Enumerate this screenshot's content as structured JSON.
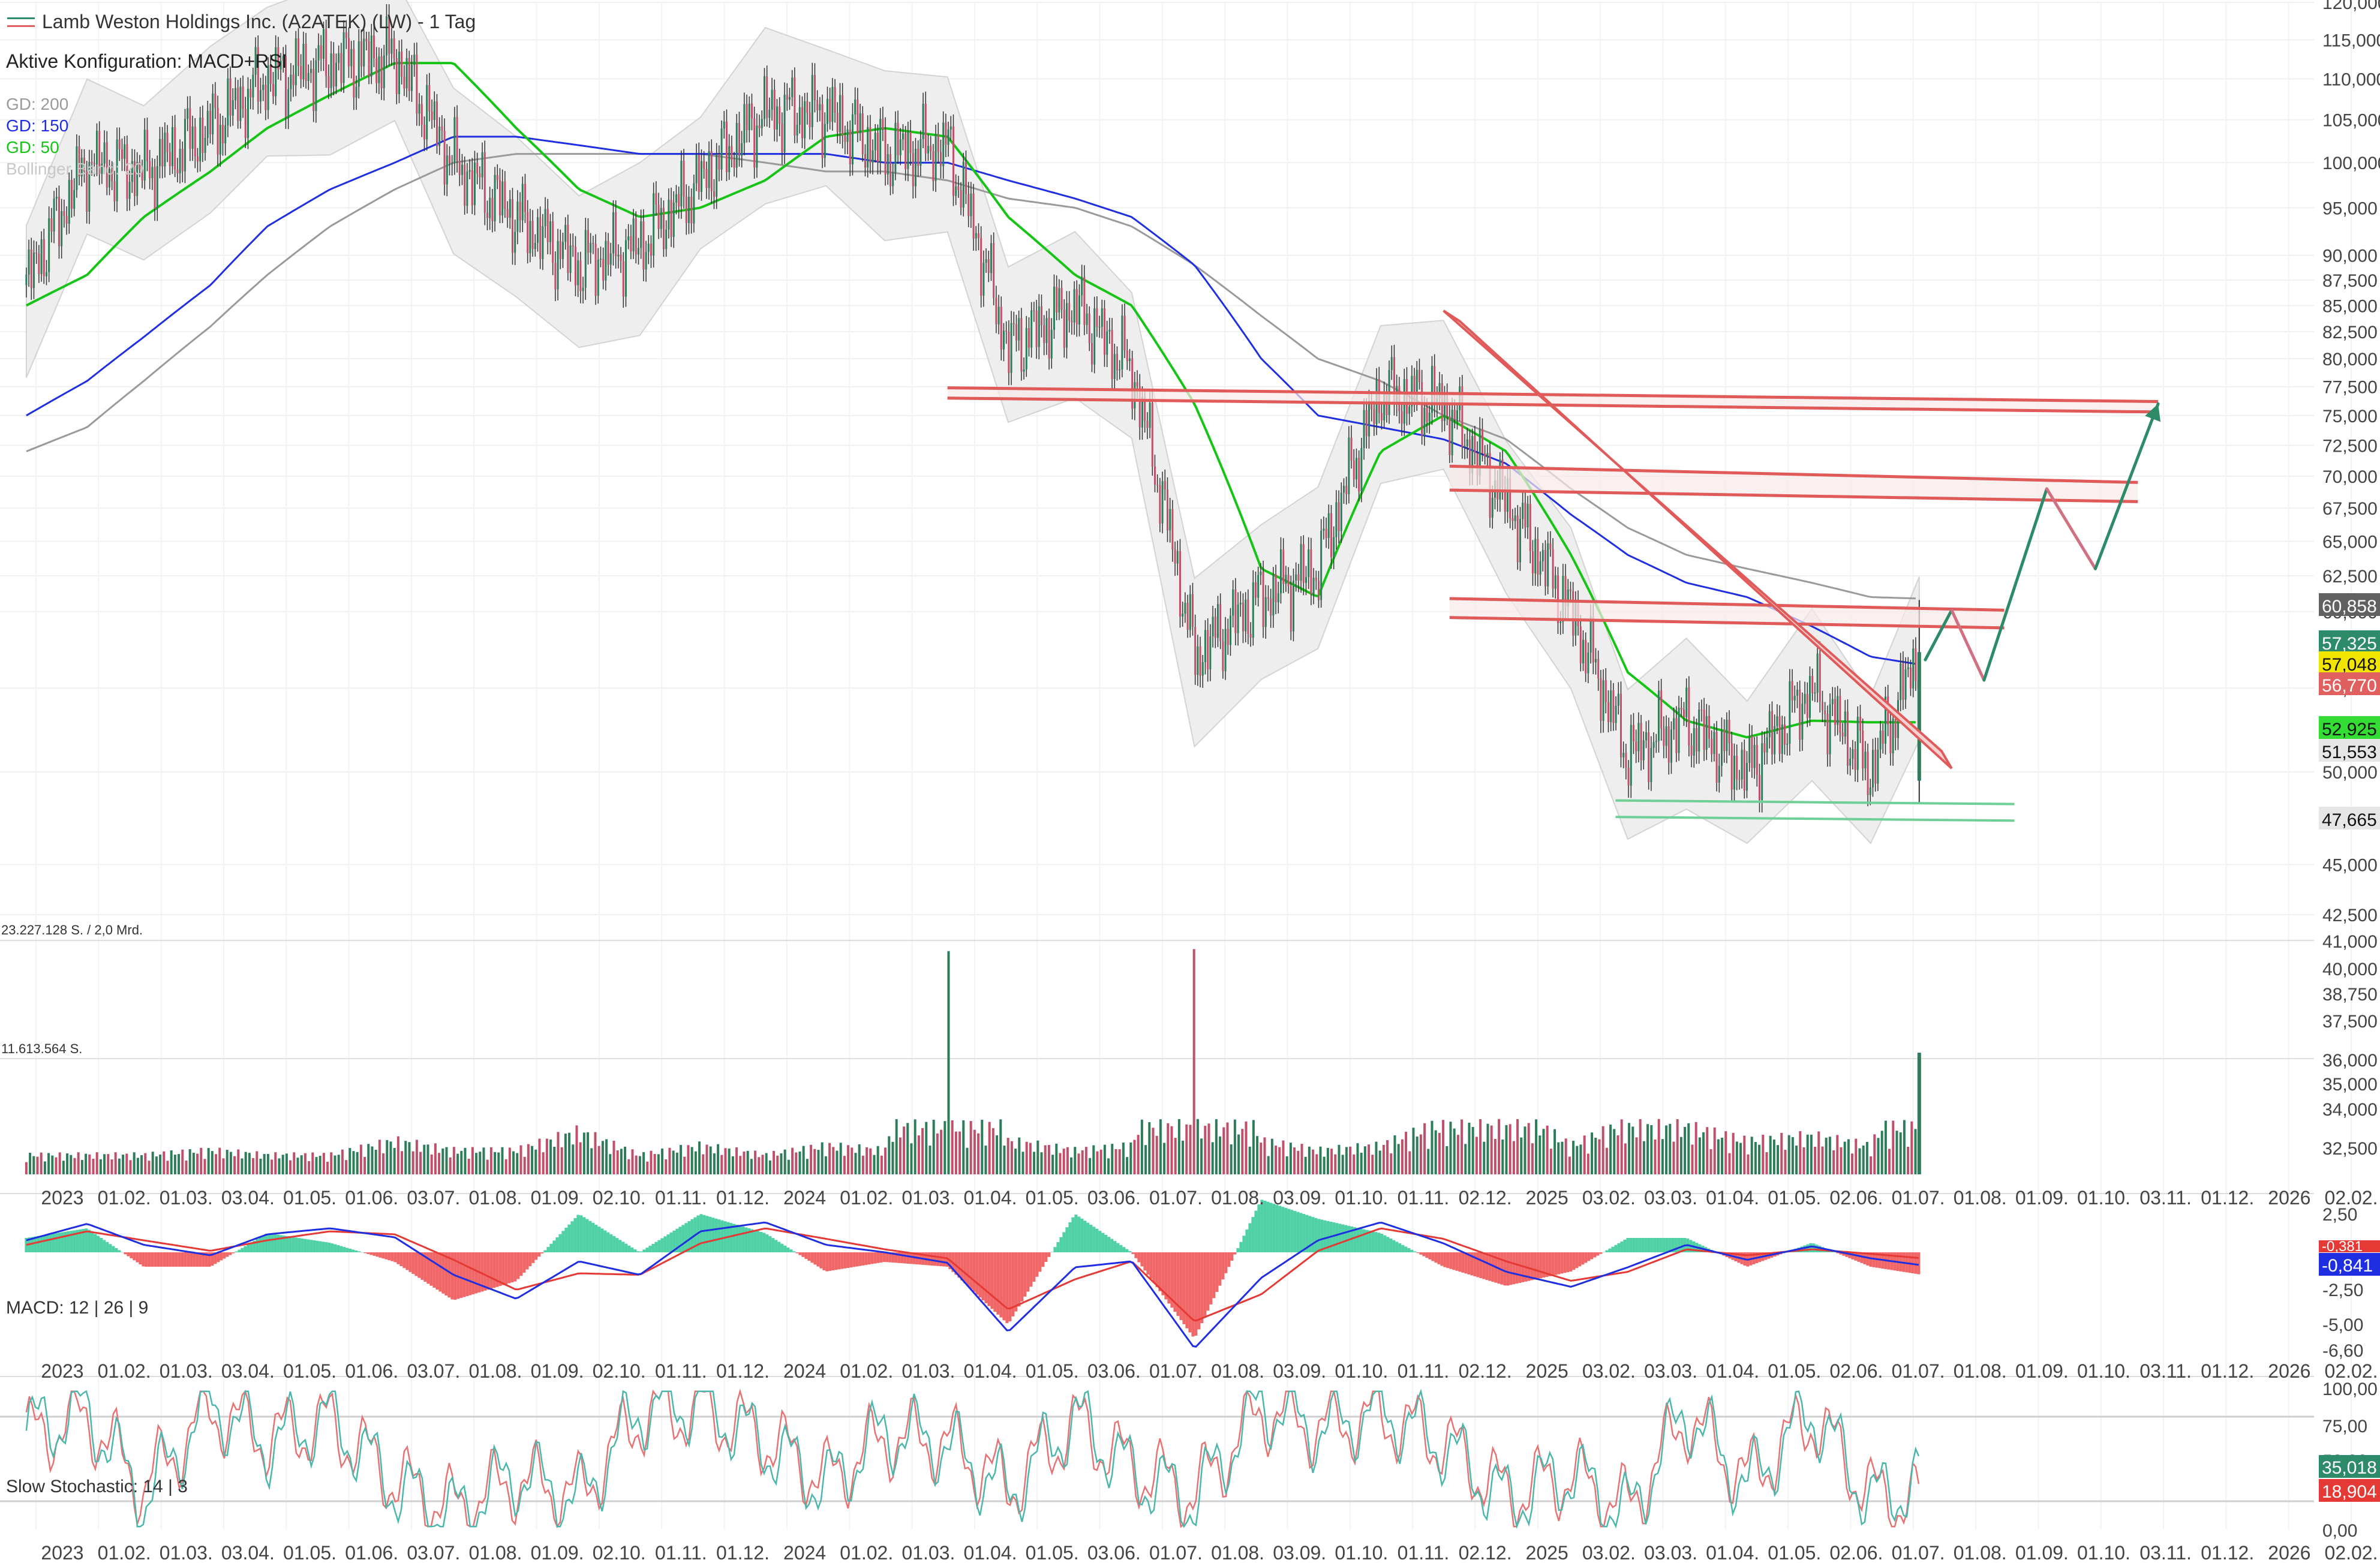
{
  "header": {
    "title": "Lamb Weston Holdings Inc. (A2ATEK) (LW) - 1 Tag",
    "config": "Aktive Konfiguration: MACD+RSI",
    "legend": [
      {
        "label": "GD: 200",
        "color": "#9a9a9a"
      },
      {
        "label": "GD: 150",
        "color": "#1f2ee0"
      },
      {
        "label": "GD: 50",
        "color": "#16c416"
      },
      {
        "label": "Bollinger Band: 20",
        "color": "#c8c8c8"
      }
    ]
  },
  "colors": {
    "up": "#2e7d5a",
    "down": "#c0506a",
    "resistance": "#e05a5a",
    "support": "#6fcf97",
    "arrow": "#2e8b6a",
    "macd": "#1f2ee0",
    "signal": "#e53935",
    "hist_pos": "#4fd1a5",
    "hist_neg": "#f06767",
    "gd50": "#16c416",
    "gd150": "#1f2ee0",
    "gd200": "#9a9a9a"
  },
  "x_axis": {
    "labels": [
      "2023",
      "01.02.",
      "01.03.",
      "03.04.",
      "01.05.",
      "01.06.",
      "03.07.",
      "01.08.",
      "01.09.",
      "02.10.",
      "01.11.",
      "01.12.",
      "2024",
      "01.02.",
      "01.03.",
      "01.04.",
      "01.05.",
      "03.06.",
      "01.07.",
      "01.08.",
      "03.09.",
      "01.10.",
      "01.11.",
      "02.12.",
      "2025",
      "03.02.",
      "03.03.",
      "01.04.",
      "01.05.",
      "02.06.",
      "01.07.",
      "01.08.",
      "01.09.",
      "01.10.",
      "03.11.",
      "01.12.",
      "2026",
      "02.02."
    ]
  },
  "price_axis": {
    "ticks": [
      "120,000",
      "115,000",
      "110,000",
      "105,000",
      "100,000",
      "95,000",
      "90,000",
      "87,500",
      "85,000",
      "82,500",
      "80,000",
      "77,500",
      "75,000",
      "72,500",
      "70,000",
      "67,500",
      "65,000",
      "62,500",
      "60,000",
      "55,000",
      "50,000",
      "45,000",
      "42,500"
    ],
    "badges": [
      {
        "value": "60,858",
        "bg": "#616161",
        "fg": "#ffffff"
      },
      {
        "value": "57,325",
        "bg": "#2e8b6a",
        "fg": "#ffffff"
      },
      {
        "value": "57,048",
        "bg": "#f2e600",
        "fg": "#111111"
      },
      {
        "value": "56,770",
        "bg": "#e06060",
        "fg": "#ffffff"
      },
      {
        "value": "52,925",
        "bg": "#33dd33",
        "fg": "#111111"
      },
      {
        "value": "51,553",
        "bg": "#e6e6e6",
        "fg": "#111111"
      },
      {
        "value": "47,665",
        "bg": "#e6e6e6",
        "fg": "#111111"
      }
    ]
  },
  "volume": {
    "label_top": "23.227.128 S. / 2,0 Mrd.",
    "label_mid": "11.613.564 S.",
    "ticks": [
      "41,000",
      "40,000",
      "38,750",
      "37,500",
      "36,000",
      "35,000",
      "34,000",
      "32,500"
    ]
  },
  "macd": {
    "label": "MACD: 12 | 26 | 9",
    "ticks": [
      "2,50",
      "-2,50",
      "-5,00",
      "-6,60"
    ],
    "badges": [
      {
        "value": "-0,841",
        "bg": "#1f2ee0",
        "fg": "#ffffff"
      },
      {
        "value": "-0,381",
        "bg": "#e53935",
        "fg": "#ffffff"
      }
    ]
  },
  "stoch": {
    "label": "Slow Stochastic: 14 | 3",
    "ticks": [
      "100,00",
      "75,00",
      "50,00",
      "0,00"
    ],
    "badges": [
      {
        "value": "35,018",
        "bg": "#2e8b6a",
        "fg": "#ffffff"
      },
      {
        "value": "18,904",
        "bg": "#e53935",
        "fg": "#ffffff"
      }
    ]
  },
  "chart_data": {
    "type": "line",
    "title": "Lamb Weston Holdings Inc. (A2ATEK) (LW) - 1 Tag",
    "ylim": [
      41.5,
      120
    ],
    "y_scale": "log",
    "x": [
      "2023-01-02",
      "2023-02-01",
      "2023-03-01",
      "2023-04-03",
      "2023-05-01",
      "2023-06-01",
      "2023-07-03",
      "2023-08-01",
      "2023-09-01",
      "2023-10-02",
      "2023-11-01",
      "2023-12-01",
      "2024-01-02",
      "2024-02-01",
      "2024-03-01",
      "2024-04-01",
      "2024-05-01",
      "2024-06-03",
      "2024-07-01",
      "2024-08-01",
      "2024-09-03",
      "2024-10-01",
      "2024-11-01",
      "2024-12-02",
      "2025-01-02",
      "2025-02-03",
      "2025-03-03",
      "2025-04-01",
      "2025-05-01",
      "2025-06-02",
      "2025-07-01",
      "2025-07-25"
    ],
    "series": [
      {
        "name": "Kurs",
        "values": [
          87,
          100,
          99,
          104,
          110,
          112,
          113,
          100,
          94,
          89,
          91,
          98,
          106,
          106,
          101,
          102,
          81,
          85,
          79,
          57,
          61,
          63,
          77,
          76,
          68,
          60,
          51,
          53,
          50,
          55,
          50,
          57.3
        ]
      },
      {
        "name": "GD: 50",
        "values": [
          85,
          88,
          94,
          99,
          104,
          108,
          112,
          112,
          104,
          97,
          94,
          95,
          98,
          103,
          104,
          103,
          94,
          88,
          85,
          76,
          63,
          61,
          72,
          75,
          72,
          64,
          56,
          53,
          52,
          53,
          52.9,
          52.9
        ]
      },
      {
        "name": "GD: 150",
        "values": [
          75,
          78,
          82,
          87,
          93,
          97,
          100,
          103,
          103,
          102,
          101,
          101,
          101,
          101,
          100,
          100,
          98,
          96,
          94,
          89,
          80,
          75,
          74,
          73,
          71,
          67,
          64,
          62,
          61,
          59,
          57,
          56.5
        ]
      },
      {
        "name": "GD: 200",
        "values": [
          72,
          74,
          78,
          83,
          88,
          93,
          97,
          100,
          101,
          101,
          101,
          101,
          100,
          99,
          99,
          98,
          96,
          95,
          93,
          89,
          84,
          80,
          78,
          75,
          73,
          69,
          66,
          64,
          63,
          62,
          61,
          60.9
        ]
      }
    ],
    "volume": [
      3,
      3,
      3,
      4,
      3,
      3,
      6,
      4,
      4,
      8,
      3,
      5,
      3,
      5,
      4,
      41,
      6,
      4,
      5,
      41,
      6,
      4,
      5,
      10,
      14,
      5,
      10,
      9,
      6,
      7,
      5,
      22
    ],
    "macd": [
      0.8,
      1.9,
      0.5,
      -0.2,
      1.2,
      1.6,
      1.0,
      -1.5,
      -3.1,
      -0.6,
      -1.5,
      1.4,
      2.0,
      0.5,
      0.0,
      -0.7,
      -5.3,
      -1.0,
      -0.6,
      -6.4,
      -1.7,
      0.8,
      2.0,
      0.6,
      -1.3,
      -2.3,
      -1.0,
      0.5,
      -0.5,
      0.4,
      -0.4,
      -0.84
    ],
    "signal": [
      0.5,
      1.4,
      0.8,
      0.1,
      0.8,
      1.4,
      1.2,
      -0.5,
      -2.5,
      -1.4,
      -1.5,
      0.6,
      1.6,
      0.9,
      0.2,
      -0.4,
      -3.8,
      -1.8,
      -0.6,
      -4.6,
      -2.8,
      0.1,
      1.6,
      0.9,
      -0.6,
      -1.9,
      -1.3,
      0.2,
      -0.2,
      0.2,
      -0.1,
      -0.381
    ],
    "stoch_k": [
      70,
      85,
      20,
      90,
      60,
      80,
      30,
      10,
      40,
      20,
      85,
      90,
      60,
      30,
      70,
      60,
      25,
      80,
      40,
      20,
      90,
      70,
      85,
      60,
      20,
      40,
      10,
      85,
      30,
      85,
      20,
      35.0
    ],
    "stoch_d": [
      65,
      80,
      30,
      85,
      65,
      75,
      35,
      15,
      35,
      25,
      80,
      85,
      65,
      35,
      65,
      62,
      30,
      75,
      45,
      25,
      85,
      72,
      80,
      62,
      25,
      38,
      15,
      80,
      35,
      80,
      25,
      18.9
    ]
  }
}
